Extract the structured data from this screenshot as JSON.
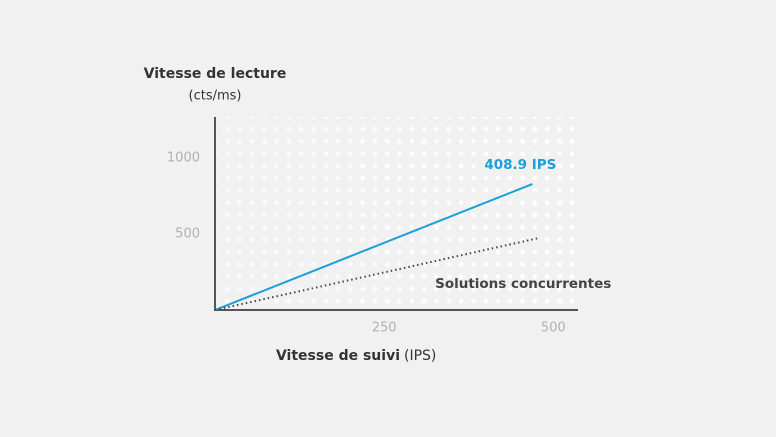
{
  "chart_data": {
    "type": "line",
    "y_label": "Vitesse de lecture",
    "y_unit": "(cts/ms)",
    "x_label": "Vitesse de suivi",
    "x_unit": "(IPS)",
    "xlim": [
      0,
      535
    ],
    "ylim": [
      0,
      1270
    ],
    "xticks": [
      250,
      500
    ],
    "yticks": [
      500,
      1000
    ],
    "series": [
      {
        "name": "408.9 IPS",
        "color": "#1a9fd9",
        "style": "solid",
        "x": [
          0,
          469
        ],
        "values": [
          0,
          829
        ]
      },
      {
        "name": "Solutions concurrentes",
        "color": "#444444",
        "style": "dotted",
        "x": [
          0,
          479
        ],
        "values": [
          0,
          474
        ]
      }
    ]
  }
}
